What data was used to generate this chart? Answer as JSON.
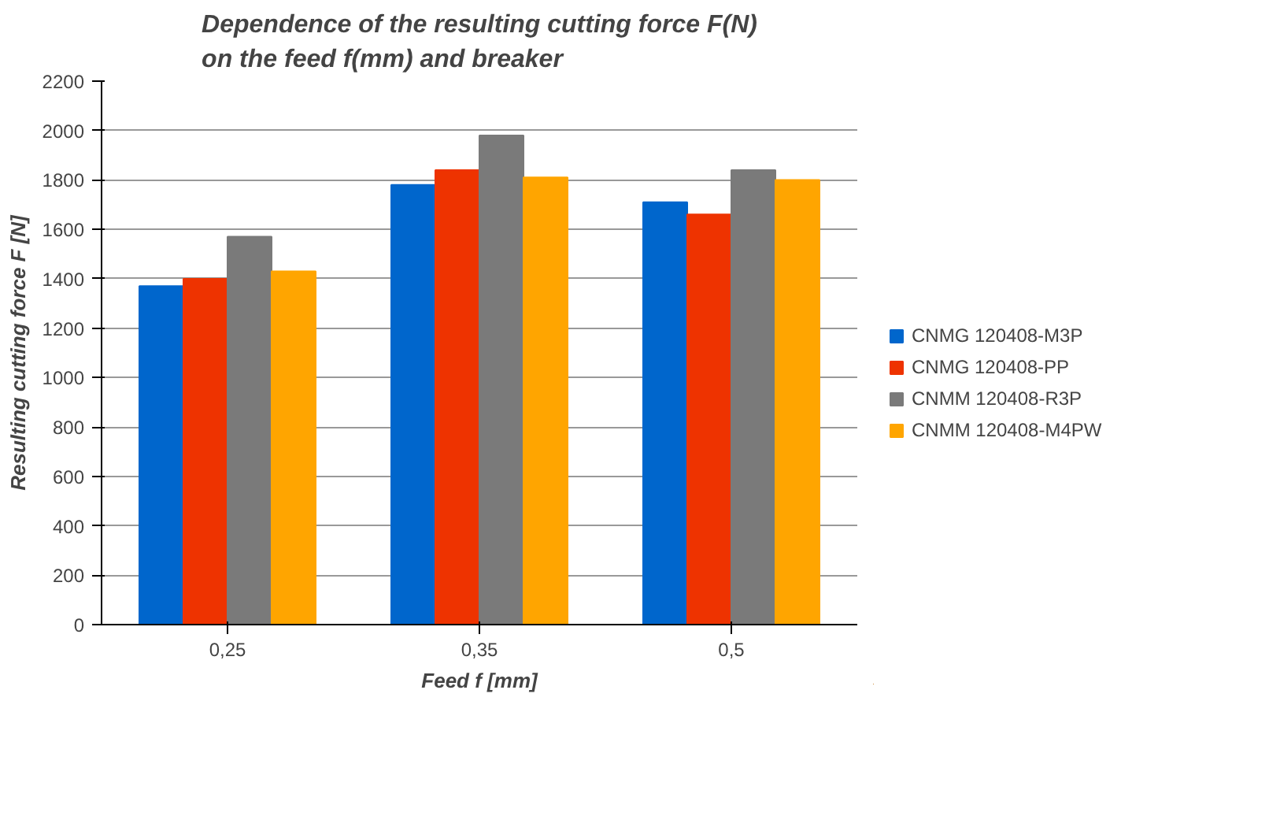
{
  "chart_data": {
    "type": "bar",
    "title": "Dependence of the resulting cutting force F(N)\non the feed f(mm) and breaker",
    "xlabel": "Feed f [mm]",
    "ylabel": "Resulting cutting force F [N]",
    "categories": [
      "0,25",
      "0,35",
      "0,5"
    ],
    "series": [
      {
        "name": "CNMG 120408-M3P",
        "color": "#0066cc",
        "values": [
          1370,
          1780,
          1710
        ]
      },
      {
        "name": "CNMG 120408-PP",
        "color": "#ee3300",
        "values": [
          1400,
          1840,
          1660
        ]
      },
      {
        "name": "CNMM 120408-R3P",
        "color": "#7a7a7a",
        "values": [
          1570,
          1980,
          1840
        ]
      },
      {
        "name": "CNMM 120408-M4PW",
        "color": "#ffa500",
        "values": [
          1430,
          1810,
          1800
        ]
      }
    ],
    "ylim": [
      0,
      2200
    ],
    "yticks": [
      0,
      200,
      400,
      600,
      800,
      1000,
      1200,
      1400,
      1600,
      1800,
      2000,
      2200
    ],
    "grid": "y",
    "legend": "right"
  }
}
